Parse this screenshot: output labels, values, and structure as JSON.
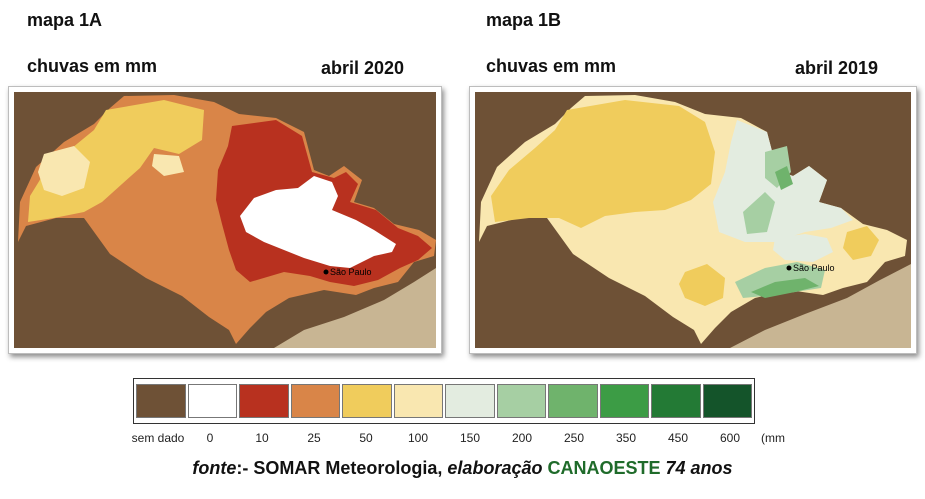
{
  "maps": [
    {
      "title": "mapa 1A",
      "subtitle": "chuvas em mm",
      "period": "abril 2020",
      "city_label": "São Paulo"
    },
    {
      "title": "mapa 1B",
      "subtitle": "chuvas em mm",
      "period": "abril 2019",
      "city_label": "São Paulo"
    }
  ],
  "legend": {
    "unit": "(mm",
    "entries": [
      {
        "label": "sem dado",
        "color": "#6e5136"
      },
      {
        "label": "0",
        "color": "#ffffff"
      },
      {
        "label": "10",
        "color": "#b8311f"
      },
      {
        "label": "25",
        "color": "#d98548"
      },
      {
        "label": "50",
        "color": "#f0cc5c"
      },
      {
        "label": "100",
        "color": "#f9e7b0"
      },
      {
        "label": "150",
        "color": "#e3ece0"
      },
      {
        "label": "200",
        "color": "#a6cfa3"
      },
      {
        "label": "250",
        "color": "#6fb36c"
      },
      {
        "label": "350",
        "color": "#3c9c45"
      },
      {
        "label": "450",
        "color": "#237a35"
      },
      {
        "label": "600",
        "color": "#14542a"
      }
    ]
  },
  "source": {
    "prefix": "fonte",
    "sep": ":- SOMAR Meteorologia, ",
    "elab": "elaboração",
    "brand": "CANAOESTE",
    "anos": "74 anos"
  },
  "colors": {
    "land": "#6e5136",
    "ocean": "#c8b593"
  }
}
